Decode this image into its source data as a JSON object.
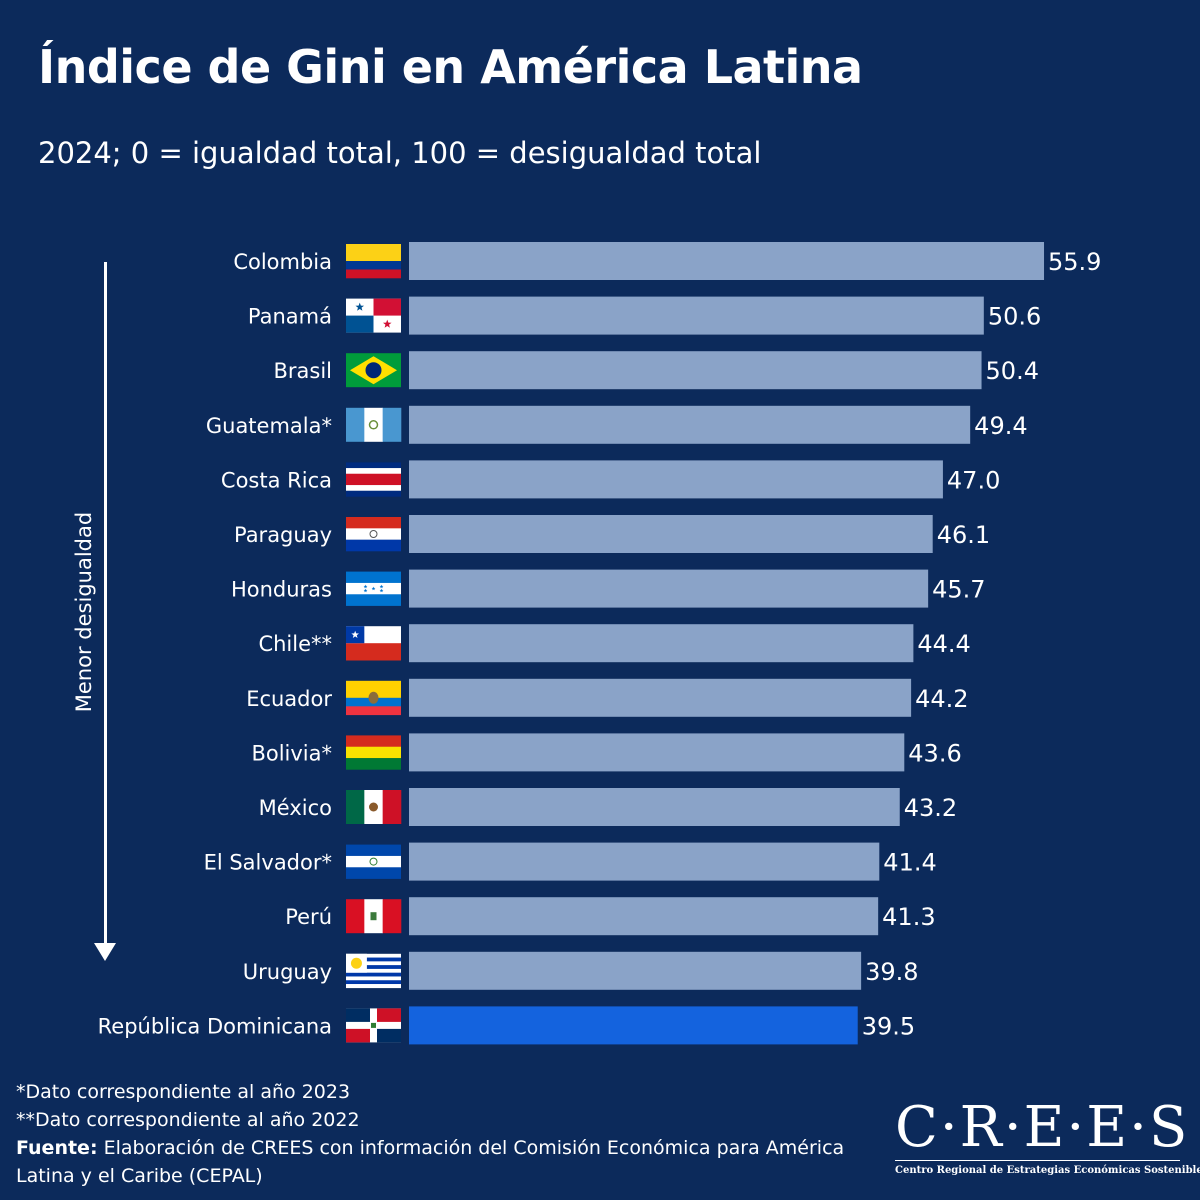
{
  "header": {
    "title": "Índice de Gini en América Latina",
    "subtitle": "2024; 0 =  igualdad total, 100 = desigualdad total"
  },
  "axis_label": "Menor desigualdad",
  "colors": {
    "background": "#0c2a5b",
    "bar": "#8aa3c8",
    "bar_highlight": "#1463de",
    "text": "#ffffff"
  },
  "chart_data": {
    "type": "bar",
    "orientation": "horizontal",
    "title": "Índice de Gini en América Latina",
    "subtitle": "2024; 0 =  igualdad total, 100 = desigualdad total",
    "xlim": [
      0,
      100
    ],
    "categories": [
      "Colombia",
      "Panamá",
      "Brasil",
      "Guatemala*",
      "Costa Rica",
      "Paraguay",
      "Honduras",
      "Chile**",
      "Ecuador",
      "Bolivia*",
      "México",
      "El Salvador*",
      "Perú",
      "Uruguay",
      "República Dominicana"
    ],
    "values": [
      55.9,
      50.6,
      50.4,
      49.4,
      47.0,
      46.1,
      45.7,
      44.4,
      44.2,
      43.6,
      43.2,
      41.4,
      41.3,
      39.8,
      39.5
    ],
    "value_labels": [
      "55.9",
      "50.6",
      "50.4",
      "49.4",
      "47.0",
      "46.1",
      "45.7",
      "44.4",
      "44.2",
      "43.6",
      "43.2",
      "41.4",
      "41.3",
      "39.8",
      "39.5"
    ],
    "flags": [
      "colombia-flag",
      "panama-flag",
      "brazil-flag",
      "guatemala-flag",
      "costa-rica-flag",
      "paraguay-flag",
      "honduras-flag",
      "chile-flag",
      "ecuador-flag",
      "bolivia-flag",
      "mexico-flag",
      "el-salvador-flag",
      "peru-flag",
      "uruguay-flag",
      "dominican-republic-flag"
    ],
    "highlight": "República Dominicana"
  },
  "notes": {
    "note1": "*Dato correspondiente al año 2023",
    "note2": "**Dato correspondiente al año 2022",
    "source_label": "Fuente:",
    "source_text": " Elaboración de CREES con información del Comisión Económica para América Latina y el Caribe (CEPAL)"
  },
  "logo": {
    "wordmark": "C·R·E·E·S",
    "tagline": "Centro Regional de Estrategias Económicas Sostenibles"
  }
}
